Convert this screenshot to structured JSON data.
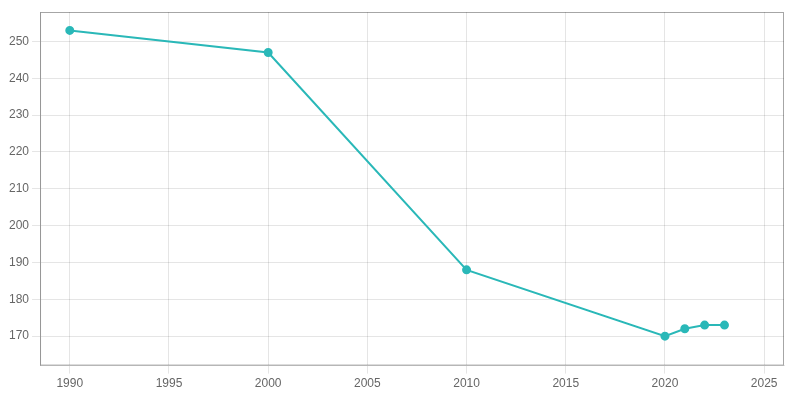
{
  "chart_data": {
    "type": "line",
    "x": [
      1990,
      2000,
      2010,
      2020,
      2021,
      2022,
      2023
    ],
    "values": [
      253,
      247,
      188,
      170,
      172,
      173,
      173
    ],
    "color": "#2ab8b8",
    "xlim": [
      1988.5,
      2026
    ],
    "ylim": [
      162,
      258
    ],
    "xticks": [
      1990,
      1995,
      2000,
      2005,
      2010,
      2015,
      2020,
      2025
    ],
    "yticks": [
      170,
      180,
      190,
      200,
      210,
      220,
      230,
      240,
      250
    ],
    "grid": true
  }
}
